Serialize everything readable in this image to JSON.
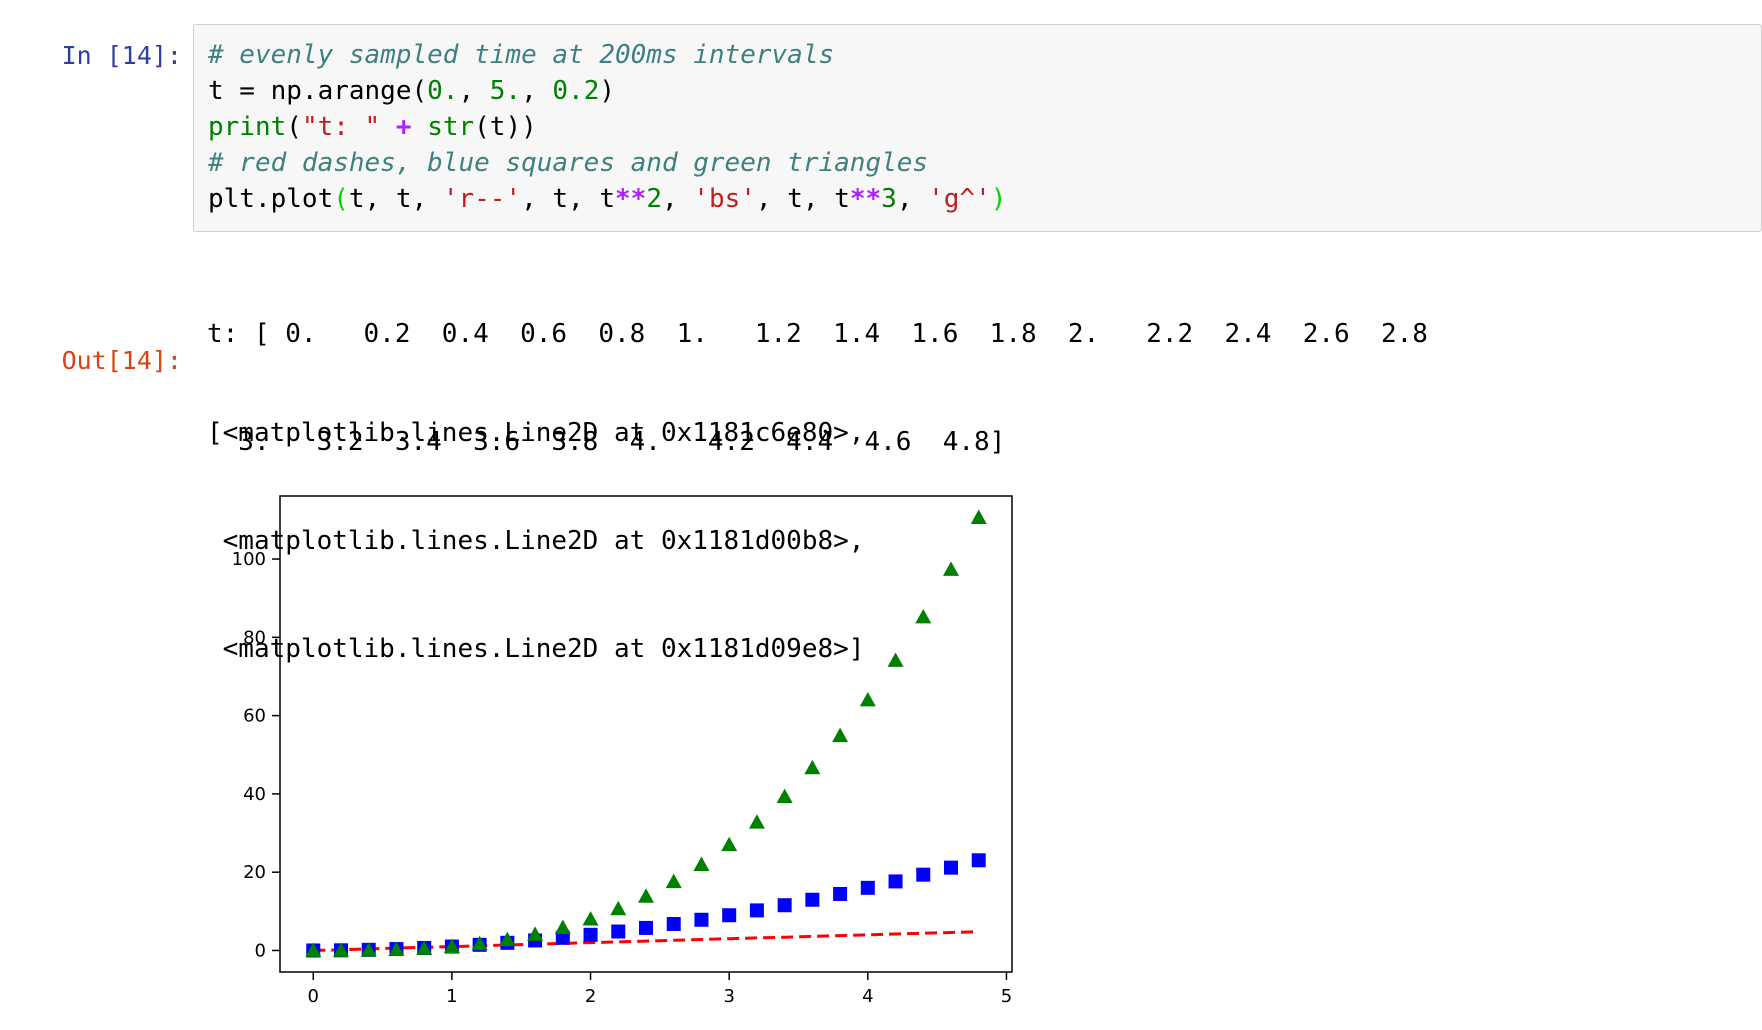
{
  "cell": {
    "in_prompt": "In [14]:",
    "out_prompt": "Out[14]:"
  },
  "code": {
    "line1": "# evenly sampled time at 200ms intervals",
    "line2": {
      "a": "t = np.arange(",
      "n1": "0.",
      "s1": ", ",
      "n2": "5.",
      "s2": ", ",
      "n3": "0.2",
      "b": ")"
    },
    "line3": {
      "fn1": "print",
      "p1": "(",
      "str": "\"t: \"",
      "sp": " ",
      "op": "+",
      "sp2": " ",
      "fn2": "str",
      "rest": "(t))"
    },
    "line4": "# red dashes, blue squares and green triangles",
    "line5": {
      "a": "plt.plot",
      "p1": "(",
      "b": "t, t, ",
      "s1": "'r--'",
      "c": ", t, t",
      "op1": "**",
      "n1": "2",
      "d": ", ",
      "s2": "'bs'",
      "e": ", t, t",
      "op2": "**",
      "n2": "3",
      "f": ", ",
      "s3": "'g^'",
      "p2": ")"
    }
  },
  "stdout": {
    "line1": "t: [ 0.   0.2  0.4  0.6  0.8  1.   1.2  1.4  1.6  1.8  2.   2.2  2.4  2.6  2.8",
    "line2": "  3.   3.2  3.4  3.6  3.8  4.   4.2  4.4  4.6  4.8]"
  },
  "output": {
    "line1": "[<matplotlib.lines.Line2D at 0x1181c6e80>,",
    "line2": " <matplotlib.lines.Line2D at 0x1181d00b8>,",
    "line3": " <matplotlib.lines.Line2D at 0x1181d09e8>]"
  },
  "chart_data": {
    "type": "scatter",
    "title": "",
    "xlabel": "",
    "ylabel": "",
    "xlim": [
      -0.24,
      5.04
    ],
    "ylim": [
      -5.5,
      116.1
    ],
    "xticks": [
      0,
      1,
      2,
      3,
      4,
      5
    ],
    "yticks": [
      0,
      20,
      40,
      60,
      80,
      100
    ],
    "grid": false,
    "x": [
      0,
      0.2,
      0.4,
      0.6,
      0.8,
      1.0,
      1.2,
      1.4,
      1.6,
      1.8,
      2.0,
      2.2,
      2.4,
      2.6,
      2.8,
      3.0,
      3.2,
      3.4,
      3.6,
      3.8,
      4.0,
      4.2,
      4.4,
      4.6,
      4.8
    ],
    "series": [
      {
        "style": "red dashed line",
        "color": "#ff0000",
        "values": [
          0,
          0.2,
          0.4,
          0.6,
          0.8,
          1.0,
          1.2,
          1.4,
          1.6,
          1.8,
          2.0,
          2.2,
          2.4,
          2.6,
          2.8,
          3.0,
          3.2,
          3.4,
          3.6,
          3.8,
          4.0,
          4.2,
          4.4,
          4.6,
          4.8
        ]
      },
      {
        "style": "blue squares",
        "color": "#0000ff",
        "values": [
          0,
          0.04,
          0.16,
          0.36,
          0.64,
          1.0,
          1.44,
          1.96,
          2.56,
          3.24,
          4.0,
          4.84,
          5.76,
          6.76,
          7.84,
          9.0,
          10.24,
          11.56,
          12.96,
          14.44,
          16.0,
          17.64,
          19.36,
          21.16,
          23.04
        ]
      },
      {
        "style": "green triangles",
        "color": "#008000",
        "values": [
          0,
          0.008,
          0.064,
          0.216,
          0.512,
          1.0,
          1.728,
          2.744,
          4.096,
          5.832,
          8.0,
          10.648,
          13.824,
          17.576,
          21.952,
          27.0,
          32.768,
          39.304,
          46.656,
          54.872,
          64.0,
          74.088,
          85.184,
          97.336,
          110.592
        ]
      }
    ]
  }
}
